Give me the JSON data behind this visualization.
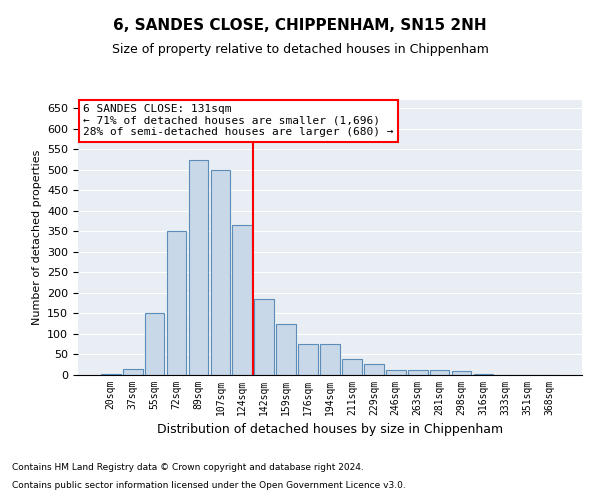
{
  "title": "6, SANDES CLOSE, CHIPPENHAM, SN15 2NH",
  "subtitle": "Size of property relative to detached houses in Chippenham",
  "xlabel": "Distribution of detached houses by size in Chippenham",
  "ylabel": "Number of detached properties",
  "categories": [
    "20sqm",
    "37sqm",
    "55sqm",
    "72sqm",
    "89sqm",
    "107sqm",
    "124sqm",
    "142sqm",
    "159sqm",
    "176sqm",
    "194sqm",
    "211sqm",
    "229sqm",
    "246sqm",
    "263sqm",
    "281sqm",
    "298sqm",
    "316sqm",
    "333sqm",
    "351sqm",
    "368sqm"
  ],
  "values": [
    2,
    15,
    150,
    350,
    525,
    500,
    365,
    185,
    125,
    75,
    75,
    40,
    27,
    12,
    12,
    12,
    10,
    2,
    1,
    0,
    0
  ],
  "bar_color": "#c8d8e8",
  "bar_edge_color": "#5b8db8",
  "vline_color": "red",
  "ylim": [
    0,
    670
  ],
  "yticks": [
    0,
    50,
    100,
    150,
    200,
    250,
    300,
    350,
    400,
    450,
    500,
    550,
    600,
    650
  ],
  "annotation_text": "6 SANDES CLOSE: 131sqm\n← 71% of detached houses are smaller (1,696)\n28% of semi-detached houses are larger (680) →",
  "annotation_box_color": "white",
  "annotation_box_edge": "red",
  "bg_color": "#e8eef4",
  "footnote1": "Contains HM Land Registry data © Crown copyright and database right 2024.",
  "footnote2": "Contains public sector information licensed under the Open Government Licence v3.0."
}
